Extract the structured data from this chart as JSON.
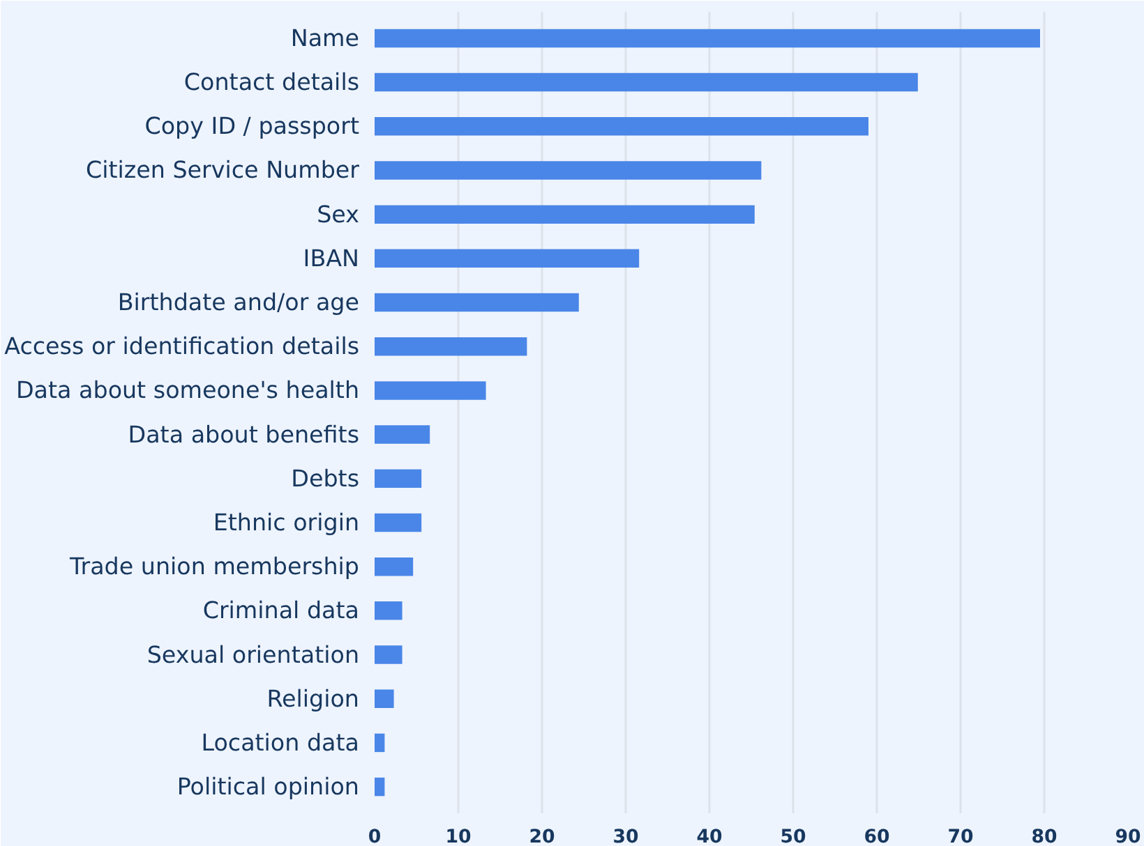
{
  "chart_data": {
    "type": "bar",
    "orientation": "horizontal",
    "categories": [
      "Name",
      "Contact details",
      "Copy ID / passport",
      "Citizen Service Number",
      "Sex",
      "IBAN",
      "Birthdate and/or age",
      "Access or identification details",
      "Data about someone's health",
      "Data about benefits",
      "Debts",
      "Ethnic origin",
      "Trade union membership",
      "Criminal data",
      "Sexual orientation",
      "Religion",
      "Location data",
      "Political opinion"
    ],
    "values": [
      79.5,
      64.9,
      59.0,
      46.2,
      45.4,
      31.6,
      24.4,
      18.2,
      13.3,
      6.6,
      5.6,
      5.6,
      4.6,
      3.3,
      3.3,
      2.3,
      1.2,
      1.2
    ],
    "color": "#4a86e8",
    "xlim": [
      0,
      90
    ],
    "xticks": [
      0,
      10,
      20,
      30,
      40,
      50,
      60,
      70,
      80,
      90
    ],
    "grid": "x"
  }
}
